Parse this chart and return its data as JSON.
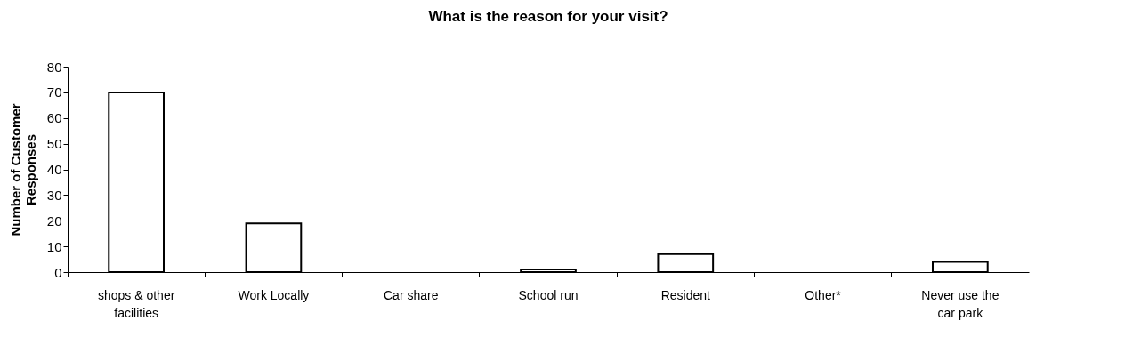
{
  "chart_data": {
    "type": "bar",
    "title": "What is the reason for your visit?",
    "ylabel": "Number of Customer Responses",
    "categories": [
      "shops & other facilities",
      "Work Locally",
      "Car share",
      "School run",
      "Resident",
      "Other*",
      "Never use the car park"
    ],
    "values": [
      70,
      19,
      0,
      1,
      7,
      0,
      4
    ],
    "color": "#ffffff",
    "ylim": [
      0,
      80
    ],
    "yticks": [
      0,
      10,
      20,
      30,
      40,
      50,
      60,
      70,
      80
    ],
    "grid": false
  }
}
